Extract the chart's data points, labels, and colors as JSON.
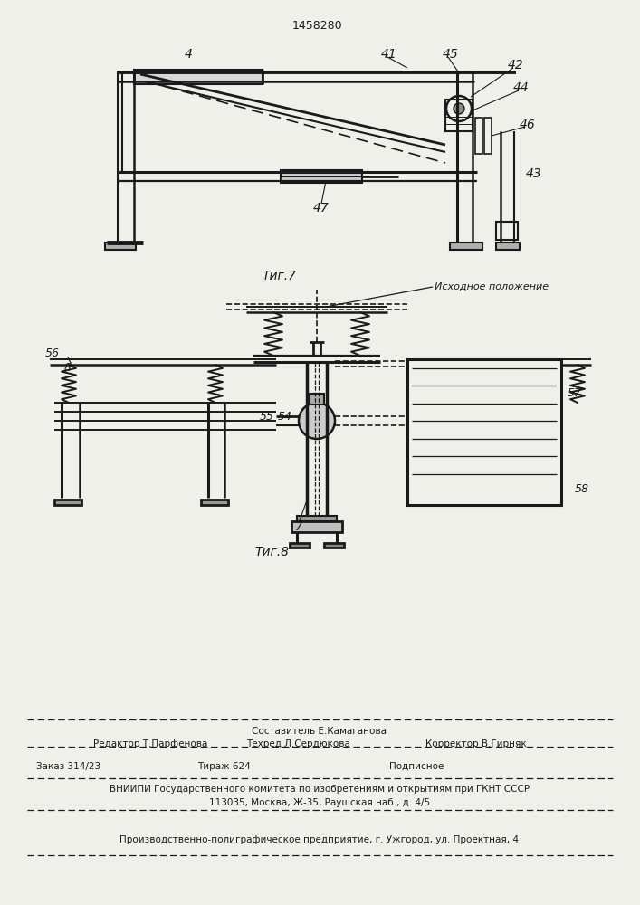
{
  "patent_number": "1458280",
  "fig7_label": "Τиг.7",
  "fig8_label": "Τиг.8",
  "source_label": "Исходное положение",
  "composer_line": "Составитель Е.Камаганова",
  "editor_line": "Редактор Т.Парфенова",
  "techred_line": "Техред Л.Сердюкова",
  "corrector_line": "Корректор В.Гирняк",
  "order_line": "Заказ 314/23",
  "tirazh_line": "Тираж 624",
  "podpisnoe_line": "Подписное",
  "vniiipi_line": "ВНИИПИ Государственного комитета по изобретениям и открытиям при ГКНТ СССР",
  "address_line": "113035, Москва, Ж-35, Раушская наб., д. 4/5",
  "factory_line": "Производственно-полиграфическое предприятие, г. Ужгород, ул. Проектная, 4",
  "bg_color": "#f0f0eb",
  "line_color": "#1a1a1a"
}
